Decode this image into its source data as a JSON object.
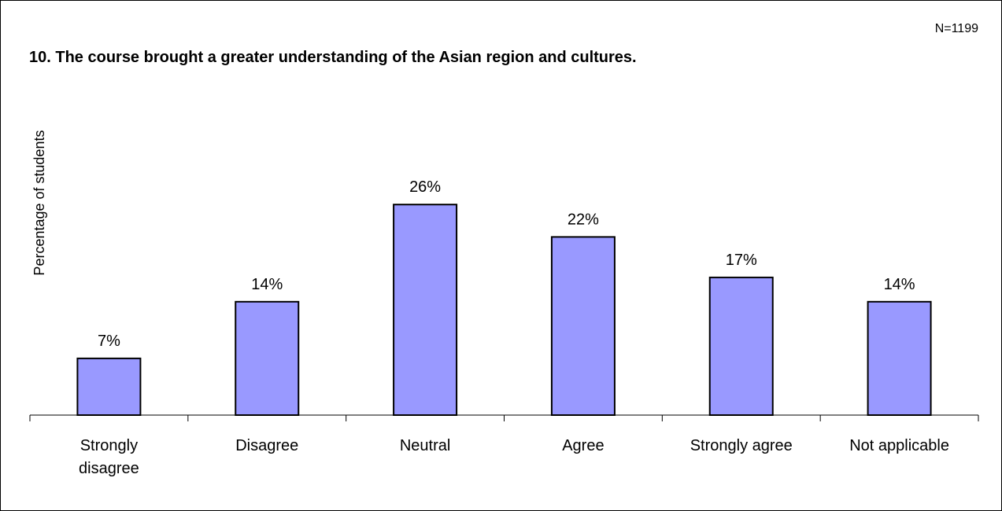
{
  "chart_data": {
    "type": "bar",
    "title": "10. The course brought a greater understanding of the Asian region and cultures.",
    "note": "N=1199",
    "ylabel": "Percentage of students",
    "xlabel": "",
    "categories": [
      [
        "Strongly",
        "disagree"
      ],
      [
        "Disagree"
      ],
      [
        "Neutral"
      ],
      [
        "Agree"
      ],
      [
        "Strongly agree"
      ],
      [
        "Not applicable"
      ]
    ],
    "values": [
      7,
      14,
      26,
      22,
      17,
      14
    ],
    "labels": [
      "7%",
      "14%",
      "26%",
      "22%",
      "17%",
      "14%"
    ],
    "ylim": [
      0,
      30
    ],
    "grid": false,
    "legend": "none",
    "bar_color": "#9999FF"
  }
}
